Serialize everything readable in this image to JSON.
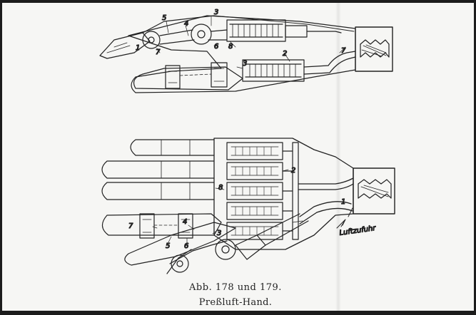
{
  "caption": {
    "line1": "Abb. 178 und 179.",
    "line2": "Preßluft-Hand."
  },
  "figure_top": {
    "labels": [
      "5",
      "3",
      "4",
      "8",
      "2",
      "7",
      "7",
      "6",
      "1",
      "3"
    ]
  },
  "figure_bottom": {
    "labels": [
      "2",
      "8",
      "1",
      "7",
      "4",
      "3",
      "5",
      "6"
    ],
    "annotation": "Luftzufuhr"
  },
  "colors": {
    "ink": "#222222",
    "paper": "#f6f6f4",
    "frame": "#1c1c1c"
  }
}
